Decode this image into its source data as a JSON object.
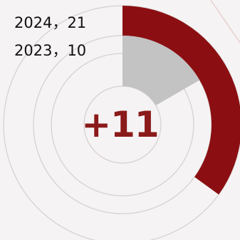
{
  "chart_data": {
    "type": "radial-bar",
    "max_value": 60,
    "series": [
      {
        "year": "2024",
        "value": 21,
        "color": "#8b0f12"
      },
      {
        "year": "2023",
        "value": 10,
        "color": "#c3c3c3"
      }
    ],
    "legend": [
      {
        "text": "2024，21",
        "color": "#111111"
      },
      {
        "text": "2023，10",
        "color": "#111111"
      }
    ],
    "difference_label": "+11",
    "difference_color": "#8b1a1a",
    "guide_color": "#d6cfcf",
    "accent_line_color": "#e8c9c9"
  }
}
